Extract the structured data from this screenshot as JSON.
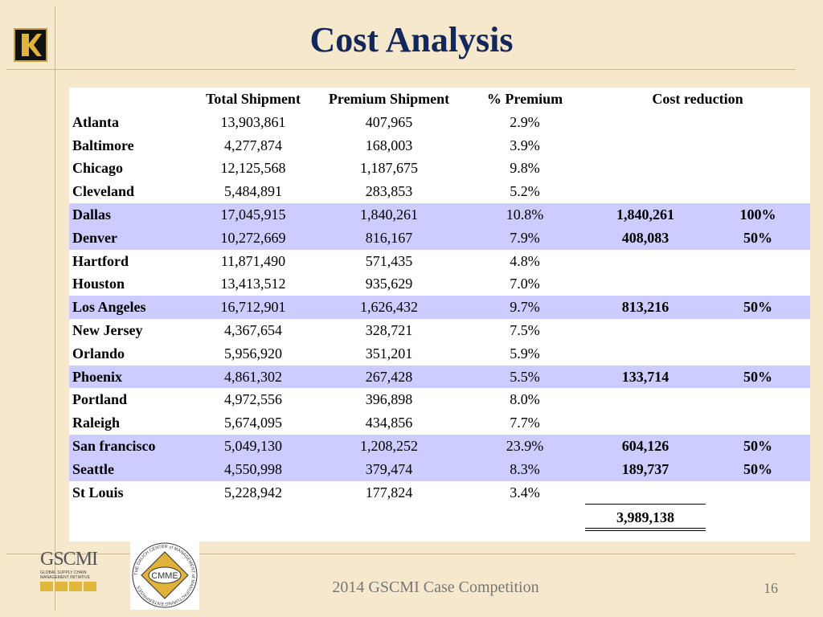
{
  "title": "Cost Analysis",
  "headers": {
    "total": "Total Shipment",
    "premium": "Premium Shipment",
    "pct": "% Premium",
    "reduction": "Cost reduction"
  },
  "rows": [
    {
      "city": "Atlanta",
      "total": "13,903,861",
      "premium": "407,965",
      "pct": "2.9%",
      "reduction": "",
      "share": "",
      "highlight": false
    },
    {
      "city": "Baltimore",
      "total": "4,277,874",
      "premium": "168,003",
      "pct": "3.9%",
      "reduction": "",
      "share": "",
      "highlight": false
    },
    {
      "city": "Chicago",
      "total": "12,125,568",
      "premium": "1,187,675",
      "pct": "9.8%",
      "reduction": "",
      "share": "",
      "highlight": false
    },
    {
      "city": "Cleveland",
      "total": "5,484,891",
      "premium": "283,853",
      "pct": "5.2%",
      "reduction": "",
      "share": "",
      "highlight": false
    },
    {
      "city": "Dallas",
      "total": "17,045,915",
      "premium": "1,840,261",
      "pct": "10.8%",
      "reduction": "1,840,261",
      "share": "100%",
      "highlight": true
    },
    {
      "city": "Denver",
      "total": "10,272,669",
      "premium": "816,167",
      "pct": "7.9%",
      "reduction": "408,083",
      "share": "50%",
      "highlight": true
    },
    {
      "city": "Hartford",
      "total": "11,871,490",
      "premium": "571,435",
      "pct": "4.8%",
      "reduction": "",
      "share": "",
      "highlight": false
    },
    {
      "city": "Houston",
      "total": "13,413,512",
      "premium": "935,629",
      "pct": "7.0%",
      "reduction": "",
      "share": "",
      "highlight": false
    },
    {
      "city": "Los Angeles",
      "total": "16,712,901",
      "premium": "1,626,432",
      "pct": "9.7%",
      "reduction": "813,216",
      "share": "50%",
      "highlight": true
    },
    {
      "city": "New Jersey",
      "total": "4,367,654",
      "premium": "328,721",
      "pct": "7.5%",
      "reduction": "",
      "share": "",
      "highlight": false
    },
    {
      "city": "Orlando",
      "total": "5,956,920",
      "premium": "351,201",
      "pct": "5.9%",
      "reduction": "",
      "share": "",
      "highlight": false
    },
    {
      "city": "Phoenix",
      "total": "4,861,302",
      "premium": "267,428",
      "pct": "5.5%",
      "reduction": "133,714",
      "share": "50%",
      "highlight": true
    },
    {
      "city": "Portland",
      "total": "4,972,556",
      "premium": "396,898",
      "pct": "8.0%",
      "reduction": "",
      "share": "",
      "highlight": false
    },
    {
      "city": "Raleigh",
      "total": "5,674,095",
      "premium": "434,856",
      "pct": "7.7%",
      "reduction": "",
      "share": "",
      "highlight": false
    },
    {
      "city": "San francisco",
      "total": "5,049,130",
      "premium": "1,208,252",
      "pct": "23.9%",
      "reduction": "604,126",
      "share": "50%",
      "highlight": true
    },
    {
      "city": "Seattle",
      "total": "4,550,998",
      "premium": "379,474",
      "pct": "8.3%",
      "reduction": "189,737",
      "share": "50%",
      "highlight": true
    },
    {
      "city": "St Louis",
      "total": "5,228,942",
      "premium": "177,824",
      "pct": "3.4%",
      "reduction": "",
      "share": "",
      "highlight": false
    }
  ],
  "grand_total": "3,989,138",
  "logos": {
    "gscmi": "GSCMI",
    "gscmi_sub": "GLOBAL SUPPLY CHAIN MANAGEMENT INITIATIVE",
    "cmme": "CMME",
    "cmme_ring": "THE DALICH CENTER of MANAGEMENT of MANUFACTURING ENTERPRISES"
  },
  "footer": "2014 GSCMI Case Competition",
  "page_number": "16",
  "colors": {
    "title": "#13285a",
    "highlight_row": "#ccccff",
    "background": "#f5e8cc"
  }
}
